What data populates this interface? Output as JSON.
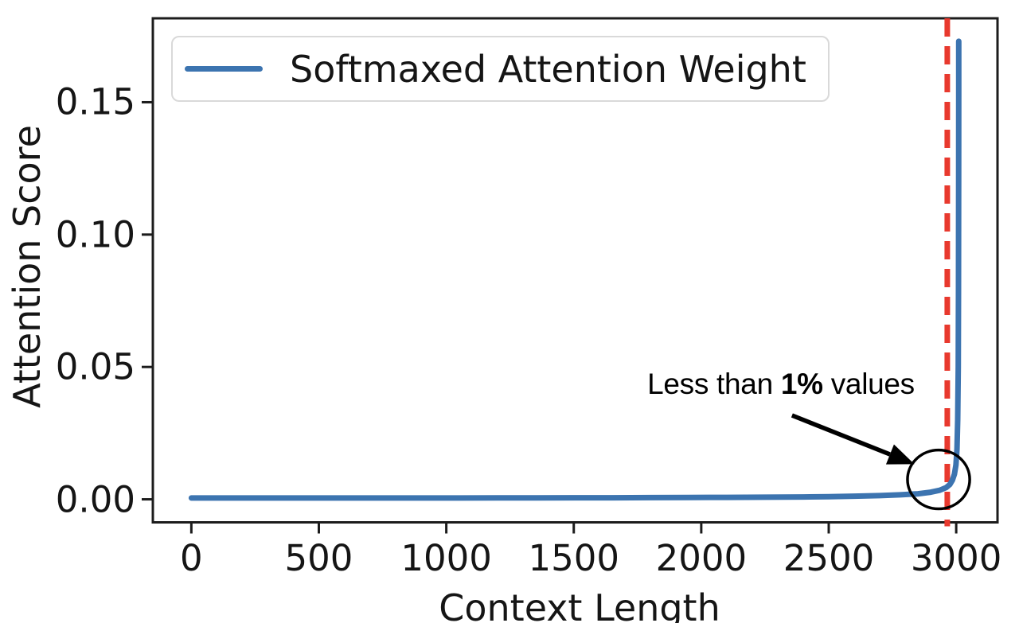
{
  "chart_data": {
    "type": "line",
    "title": "",
    "xlabel": "Context Length",
    "ylabel": "Attention Score",
    "xlim": [
      -151,
      3162
    ],
    "ylim": [
      -0.0087,
      0.1817
    ],
    "grid": false,
    "background": "#ffffff",
    "axis_color": "#1c1c1c",
    "x_tick_values": [
      0,
      500,
      1000,
      1500,
      2000,
      2500,
      3000
    ],
    "x_tick_labels": [
      "0",
      "500",
      "1000",
      "1500",
      "2000",
      "2500",
      "3000"
    ],
    "y_tick_values": [
      0,
      0.05,
      0.1,
      0.15
    ],
    "y_tick_labels": [
      "0.00",
      "0.05",
      "0.10",
      "0.15"
    ],
    "legend": {
      "position": "upper left",
      "label": "Softmaxed Attention Weight",
      "line_color": "#3c74b0"
    },
    "series": [
      {
        "name": "Softmaxed Attention Weight",
        "color": "#3c74b0",
        "line_width": 7,
        "points": [
          [
            0,
            0.0005
          ],
          [
            150,
            0.0005
          ],
          [
            300,
            0.0005
          ],
          [
            450,
            0.0005
          ],
          [
            600,
            0.0005
          ],
          [
            750,
            0.0005
          ],
          [
            900,
            0.0005
          ],
          [
            1050,
            0.0005
          ],
          [
            1200,
            0.00055
          ],
          [
            1350,
            0.00055
          ],
          [
            1500,
            0.0006
          ],
          [
            1650,
            0.0006
          ],
          [
            1800,
            0.00065
          ],
          [
            1950,
            0.0007
          ],
          [
            2100,
            0.00075
          ],
          [
            2250,
            0.0008
          ],
          [
            2400,
            0.0009
          ],
          [
            2500,
            0.001
          ],
          [
            2600,
            0.0012
          ],
          [
            2700,
            0.0014
          ],
          [
            2780,
            0.0017
          ],
          [
            2850,
            0.0021
          ],
          [
            2900,
            0.0027
          ],
          [
            2935,
            0.0034
          ],
          [
            2960,
            0.0044
          ],
          [
            2975,
            0.0056
          ],
          [
            2985,
            0.0072
          ],
          [
            2993,
            0.0095
          ],
          [
            2999,
            0.013
          ],
          [
            3003,
            0.019
          ],
          [
            3006,
            0.03
          ],
          [
            3008,
            0.05
          ],
          [
            3009,
            0.08
          ],
          [
            3009.5,
            0.12
          ],
          [
            3010,
            0.155
          ],
          [
            3010,
            0.173
          ]
        ]
      }
    ],
    "vline": {
      "x": 2965,
      "color": "#e8392e",
      "style": "dashed",
      "line_width": 7
    },
    "annotation": {
      "text_before": "Less than ",
      "text_bold": "1%",
      "text_after": " values",
      "text_full": "Less than 1% values",
      "text_pos": [
        2313,
        0.0428
      ],
      "arrow_from": [
        2356,
        0.0317
      ],
      "arrow_to": [
        2836,
        0.0133
      ],
      "arrow_color": "#000000",
      "circle_center": [
        2931,
        0.0075
      ],
      "circle_radius_x_units": 122,
      "circle_radius_y_units": 0.0111,
      "circle_color": "#000000"
    }
  }
}
